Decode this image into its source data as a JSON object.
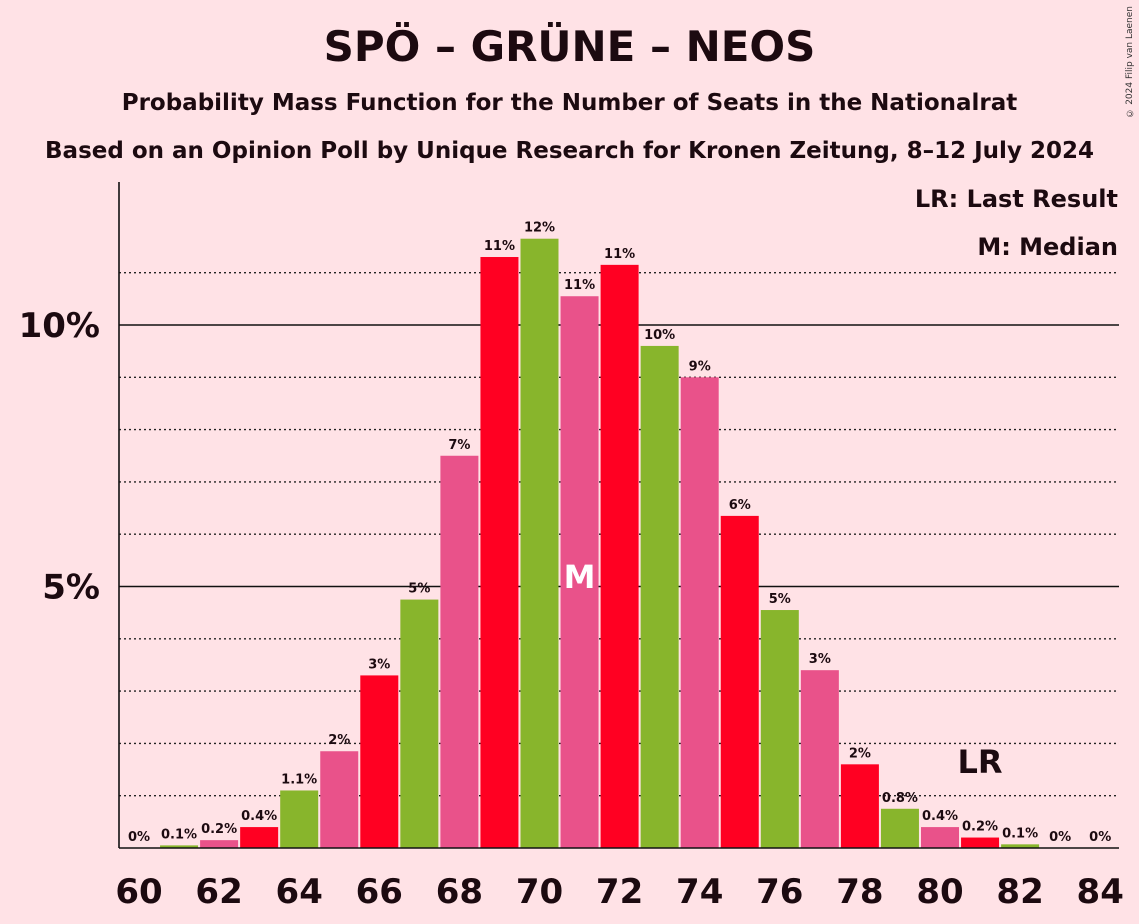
{
  "title": "SPÖ – GRÜNE – NEOS",
  "subtitle": "Probability Mass Function for the Number of Seats in the Nationalrat",
  "subtitle2": "Based on an Opinion Poll by Unique Research for Kronen Zeitung, 8–12 July 2024",
  "copyright": "© 2024 Filip van Laenen",
  "legend": {
    "last_result": "LR: Last Result",
    "median": "M: Median"
  },
  "colors": {
    "spo": "#FF0022",
    "grune": "#88B52C",
    "neos": "#E9528A",
    "background": "#FFE2E6"
  },
  "chart_data": {
    "type": "bar",
    "x": [
      60,
      61,
      62,
      63,
      64,
      65,
      66,
      67,
      68,
      69,
      70,
      71,
      72,
      73,
      74,
      75,
      76,
      77,
      78,
      79,
      80,
      81,
      82,
      83,
      84
    ],
    "values": [
      0,
      0.05,
      0.15,
      0.4,
      1.1,
      1.85,
      3.3,
      4.75,
      7.5,
      11.3,
      11.65,
      10.55,
      11.15,
      9.6,
      9.0,
      6.35,
      4.55,
      3.4,
      1.6,
      0.75,
      0.4,
      0.2,
      0.07,
      0,
      0
    ],
    "labels": [
      "0%",
      "0.1%",
      "0.2%",
      "0.4%",
      "1.1%",
      "2%",
      "3%",
      "5%",
      "7%",
      "11%",
      "12%",
      "11%",
      "11%",
      "10%",
      "9%",
      "6%",
      "5%",
      "3%",
      "2%",
      "0.8%",
      "0.4%",
      "0.2%",
      "0.1%",
      "0%",
      "0%"
    ],
    "x_tick_labels": [
      "60",
      "62",
      "64",
      "66",
      "68",
      "70",
      "72",
      "74",
      "76",
      "78",
      "80",
      "82",
      "84"
    ],
    "y_tick_labels": [
      {
        "value": 5,
        "label": "5%"
      },
      {
        "value": 10,
        "label": "10%"
      }
    ],
    "ylim": [
      0,
      12.6
    ],
    "median": 71,
    "median_label": "M",
    "last_result": 81,
    "last_result_label": "LR",
    "grid": "dotted every 1%"
  }
}
